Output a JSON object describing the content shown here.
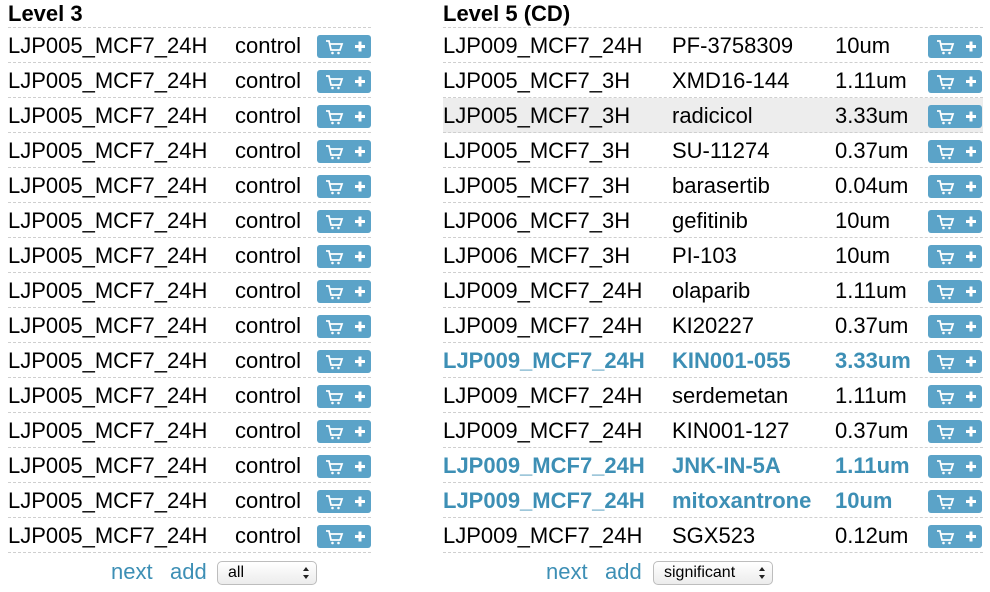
{
  "left": {
    "title": "Level 3",
    "rows": [
      {
        "plate": "LJP005_MCF7_24H",
        "treatment": "control"
      },
      {
        "plate": "LJP005_MCF7_24H",
        "treatment": "control"
      },
      {
        "plate": "LJP005_MCF7_24H",
        "treatment": "control"
      },
      {
        "plate": "LJP005_MCF7_24H",
        "treatment": "control"
      },
      {
        "plate": "LJP005_MCF7_24H",
        "treatment": "control"
      },
      {
        "plate": "LJP005_MCF7_24H",
        "treatment": "control"
      },
      {
        "plate": "LJP005_MCF7_24H",
        "treatment": "control"
      },
      {
        "plate": "LJP005_MCF7_24H",
        "treatment": "control"
      },
      {
        "plate": "LJP005_MCF7_24H",
        "treatment": "control"
      },
      {
        "plate": "LJP005_MCF7_24H",
        "treatment": "control"
      },
      {
        "plate": "LJP005_MCF7_24H",
        "treatment": "control"
      },
      {
        "plate": "LJP005_MCF7_24H",
        "treatment": "control"
      },
      {
        "plate": "LJP005_MCF7_24H",
        "treatment": "control"
      },
      {
        "plate": "LJP005_MCF7_24H",
        "treatment": "control"
      },
      {
        "plate": "LJP005_MCF7_24H",
        "treatment": "control"
      }
    ],
    "footer": {
      "next": "next",
      "add": "add",
      "select_value": "all"
    }
  },
  "right": {
    "title": "Level 5 (CD)",
    "rows": [
      {
        "plate": "LJP009_MCF7_24H",
        "compound": "PF-3758309",
        "dose": "10um",
        "significant": false,
        "highlighted": false
      },
      {
        "plate": "LJP005_MCF7_3H",
        "compound": "XMD16-144",
        "dose": "1.11um",
        "significant": false,
        "highlighted": false
      },
      {
        "plate": "LJP005_MCF7_3H",
        "compound": "radicicol",
        "dose": "3.33um",
        "significant": false,
        "highlighted": true
      },
      {
        "plate": "LJP005_MCF7_3H",
        "compound": "SU-11274",
        "dose": "0.37um",
        "significant": false,
        "highlighted": false
      },
      {
        "plate": "LJP005_MCF7_3H",
        "compound": "barasertib",
        "dose": "0.04um",
        "significant": false,
        "highlighted": false
      },
      {
        "plate": "LJP006_MCF7_3H",
        "compound": "gefitinib",
        "dose": "10um",
        "significant": false,
        "highlighted": false
      },
      {
        "plate": "LJP006_MCF7_3H",
        "compound": "PI-103",
        "dose": "10um",
        "significant": false,
        "highlighted": false
      },
      {
        "plate": "LJP009_MCF7_24H",
        "compound": "olaparib",
        "dose": "1.11um",
        "significant": false,
        "highlighted": false
      },
      {
        "plate": "LJP009_MCF7_24H",
        "compound": "KI20227",
        "dose": "0.37um",
        "significant": false,
        "highlighted": false
      },
      {
        "plate": "LJP009_MCF7_24H",
        "compound": "KIN001-055",
        "dose": "3.33um",
        "significant": true,
        "highlighted": false
      },
      {
        "plate": "LJP009_MCF7_24H",
        "compound": "serdemetan",
        "dose": "1.11um",
        "significant": false,
        "highlighted": false
      },
      {
        "plate": "LJP009_MCF7_24H",
        "compound": "KIN001-127",
        "dose": "0.37um",
        "significant": false,
        "highlighted": false
      },
      {
        "plate": "LJP009_MCF7_24H",
        "compound": "JNK-IN-5A",
        "dose": "1.11um",
        "significant": true,
        "highlighted": false
      },
      {
        "plate": "LJP009_MCF7_24H",
        "compound": "mitoxantrone",
        "dose": "10um",
        "significant": true,
        "highlighted": false
      },
      {
        "plate": "LJP009_MCF7_24H",
        "compound": "SGX523",
        "dose": "0.12um",
        "significant": false,
        "highlighted": false
      }
    ],
    "footer": {
      "next": "next",
      "add": "add",
      "select_value": "significant"
    }
  },
  "icons": {
    "button_icons": [
      "cart-icon",
      "plus-icon"
    ]
  },
  "colors": {
    "accent": "#3d8fb5",
    "button": "#5ba3c8",
    "highlight_row": "#ededed"
  }
}
